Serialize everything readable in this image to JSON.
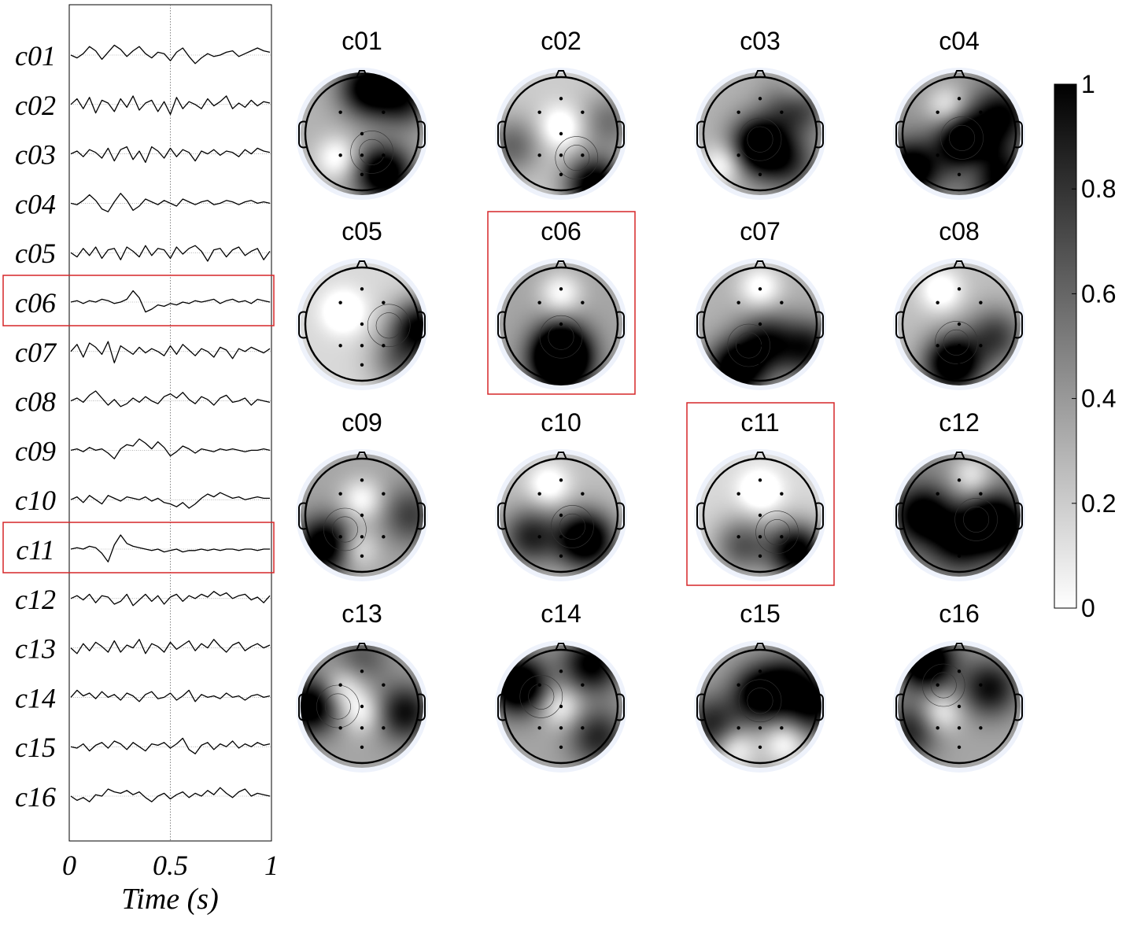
{
  "chart_data": [
    {
      "type": "line",
      "panel": "time-courses",
      "xlabel": "Time (s)",
      "xlim": [
        0,
        1
      ],
      "xticks": [
        "0",
        "0.5",
        "1"
      ],
      "reference_line_x": 0.5,
      "components": [
        "c01",
        "c02",
        "c03",
        "c04",
        "c05",
        "c06",
        "c07",
        "c08",
        "c09",
        "c10",
        "c11",
        "c12",
        "c13",
        "c14",
        "c15",
        "c16"
      ],
      "highlighted": [
        "c06",
        "c11"
      ],
      "series": [
        {
          "name": "c01",
          "values": [
            0.0,
            -0.2,
            0.1,
            0.6,
            0.3,
            -0.3,
            0.2,
            0.7,
            0.4,
            -0.1,
            0.3,
            0.6,
            0.1,
            -0.2,
            0.2,
            0.1,
            -0.4,
            0.2,
            0.5,
            -0.1,
            -0.6,
            -0.2,
            0.1,
            -0.1,
            0.0,
            0.2,
            0.3,
            -0.1,
            0.1,
            0.3,
            0.5,
            0.3,
            0.2
          ]
        },
        {
          "name": "c02",
          "values": [
            0.0,
            0.4,
            -0.3,
            0.5,
            -0.6,
            0.3,
            0.1,
            -0.5,
            0.4,
            -0.2,
            0.6,
            -0.4,
            0.1,
            0.3,
            -0.5,
            0.2,
            -0.7,
            0.5,
            -0.3,
            0.2,
            0.0,
            -0.3,
            0.4,
            -0.1,
            0.2,
            0.6,
            -0.3,
            0.1,
            -0.2,
            0.3,
            -0.1,
            0.2,
            0.1
          ]
        },
        {
          "name": "c03",
          "values": [
            0.0,
            0.2,
            -0.2,
            0.3,
            0.1,
            -0.3,
            0.4,
            -0.5,
            0.3,
            0.5,
            -0.4,
            0.2,
            -0.6,
            0.5,
            0.2,
            -0.3,
            0.4,
            -0.2,
            0.3,
            0.1,
            -0.5,
            0.2,
            0.0,
            0.3,
            -0.1,
            0.2,
            0.1,
            -0.2,
            0.3,
            0.0,
            0.4,
            0.2,
            0.1
          ]
        },
        {
          "name": "c04",
          "values": [
            0.0,
            -0.1,
            0.2,
            0.6,
            0.2,
            -0.4,
            -0.6,
            0.1,
            0.7,
            0.2,
            -0.5,
            -0.2,
            0.3,
            0.1,
            -0.1,
            0.2,
            0.0,
            -0.2,
            0.3,
            0.1,
            -0.1,
            0.1,
            0.2,
            -0.1,
            0.0,
            0.2,
            0.1,
            -0.1,
            0.1,
            0.2,
            0.0,
            0.1,
            0.0
          ]
        },
        {
          "name": "c05",
          "values": [
            0.0,
            -0.3,
            0.3,
            -0.2,
            0.4,
            -0.4,
            0.2,
            0.3,
            -0.5,
            0.4,
            0.1,
            -0.3,
            0.5,
            -0.2,
            0.3,
            0.2,
            -0.4,
            0.4,
            -0.1,
            0.3,
            0.5,
            0.1,
            -0.6,
            0.2,
            0.3,
            -0.3,
            0.2,
            0.4,
            -0.2,
            0.1,
            0.3,
            -0.5,
            0.1
          ]
        },
        {
          "name": "c06",
          "values": [
            0.0,
            0.1,
            -0.1,
            0.1,
            0.0,
            0.2,
            0.1,
            -0.1,
            0.0,
            0.2,
            0.8,
            0.3,
            -0.7,
            -0.5,
            -0.2,
            -0.3,
            -0.1,
            -0.2,
            0.0,
            -0.1,
            0.1,
            0.0,
            0.1,
            0.2,
            -0.1,
            0.1,
            0.2,
            0.0,
            0.1,
            -0.1,
            0.2,
            0.1,
            0.0
          ]
        },
        {
          "name": "c07",
          "values": [
            0.0,
            0.5,
            -0.4,
            0.6,
            0.3,
            -0.2,
            0.7,
            -0.8,
            0.4,
            0.1,
            -0.2,
            0.3,
            -0.1,
            0.2,
            0.0,
            -0.3,
            0.4,
            -0.2,
            0.5,
            0.1,
            -0.3,
            0.2,
            0.0,
            -0.4,
            0.3,
            0.1,
            -0.5,
            0.2,
            0.0,
            0.3,
            0.1,
            -0.1,
            0.2
          ]
        },
        {
          "name": "c08",
          "values": [
            0.0,
            0.2,
            -0.1,
            0.4,
            0.7,
            0.2,
            -0.3,
            0.1,
            -0.4,
            -0.2,
            0.2,
            -0.1,
            0.3,
            0.0,
            -0.2,
            0.3,
            0.5,
            0.2,
            0.6,
            0.1,
            -0.2,
            0.3,
            0.1,
            -0.3,
            0.2,
            0.4,
            -0.1,
            0.0,
            0.2,
            -0.3,
            0.1,
            0.0,
            -0.1
          ]
        },
        {
          "name": "c09",
          "values": [
            0.0,
            0.1,
            -0.1,
            0.2,
            0.0,
            0.1,
            -0.2,
            -0.6,
            0.1,
            0.4,
            0.3,
            0.8,
            0.5,
            0.1,
            0.6,
            0.2,
            -0.4,
            -0.1,
            0.3,
            0.1,
            -0.2,
            0.1,
            0.0,
            -0.1,
            0.1,
            0.0,
            0.1,
            0.0,
            -0.1,
            0.0,
            0.0,
            0.1,
            0.0
          ]
        },
        {
          "name": "c10",
          "values": [
            0.0,
            0.2,
            -0.2,
            0.3,
            0.0,
            -0.3,
            0.3,
            0.1,
            -0.1,
            0.2,
            0.1,
            0.0,
            0.2,
            -0.1,
            0.1,
            -0.2,
            -0.3,
            -0.5,
            -0.2,
            -0.6,
            -0.3,
            0.1,
            0.4,
            0.2,
            0.5,
            0.3,
            0.1,
            0.2,
            0.0,
            0.1,
            0.2,
            0.1,
            0.1
          ]
        },
        {
          "name": "c11",
          "values": [
            0.0,
            0.1,
            0.0,
            0.2,
            0.1,
            -0.3,
            -0.9,
            0.3,
            1.0,
            0.4,
            0.2,
            0.1,
            0.0,
            -0.1,
            0.0,
            -0.2,
            -0.1,
            0.0,
            -0.2,
            -0.1,
            -0.1,
            0.0,
            -0.1,
            0.0,
            -0.1,
            0.0,
            0.0,
            -0.1,
            0.0,
            0.0,
            -0.1,
            0.0,
            0.0
          ]
        },
        {
          "name": "c12",
          "values": [
            0.0,
            0.2,
            -0.1,
            0.3,
            -0.3,
            0.2,
            0.1,
            -0.4,
            -0.2,
            0.3,
            -0.5,
            -0.1,
            0.3,
            -0.2,
            0.2,
            -0.4,
            0.1,
            0.3,
            -0.2,
            0.2,
            0.0,
            0.3,
            0.1,
            0.5,
            0.2,
            0.4,
            0.0,
            0.2,
            0.3,
            -0.1,
            0.1,
            -0.3,
            0.2
          ]
        },
        {
          "name": "c13",
          "values": [
            0.0,
            -0.4,
            0.3,
            -0.2,
            0.4,
            0.1,
            -0.3,
            0.5,
            -0.3,
            0.2,
            0.0,
            0.6,
            -0.4,
            0.3,
            0.1,
            -0.3,
            0.4,
            -0.1,
            0.2,
            0.5,
            -0.2,
            0.3,
            0.0,
            0.6,
            0.1,
            -0.3,
            0.2,
            0.4,
            -0.2,
            0.1,
            0.3,
            0.0,
            0.2
          ]
        },
        {
          "name": "c14",
          "values": [
            0.0,
            0.5,
            0.1,
            0.3,
            -0.1,
            0.4,
            0.0,
            0.2,
            -0.2,
            0.3,
            0.1,
            -0.3,
            0.2,
            0.4,
            -0.1,
            0.0,
            0.3,
            -0.2,
            0.1,
            0.5,
            -0.3,
            0.2,
            0.0,
            0.1,
            -0.1,
            0.3,
            0.0,
            0.1,
            -0.2,
            0.1,
            0.2,
            0.0,
            0.1
          ]
        },
        {
          "name": "c15",
          "values": [
            0.0,
            -0.1,
            0.2,
            -0.3,
            0.1,
            0.3,
            -0.1,
            0.4,
            0.2,
            -0.2,
            0.3,
            0.0,
            -0.3,
            0.2,
            0.1,
            0.3,
            -0.1,
            0.2,
            0.6,
            -0.2,
            -0.5,
            0.1,
            0.3,
            -0.2,
            0.2,
            0.0,
            0.4,
            -0.1,
            0.2,
            0.0,
            0.3,
            0.1,
            0.2
          ]
        },
        {
          "name": "c16",
          "values": [
            0.0,
            -0.3,
            -0.1,
            -0.4,
            0.1,
            0.0,
            0.5,
            0.3,
            0.2,
            0.4,
            0.1,
            0.3,
            -0.1,
            -0.4,
            0.0,
            0.2,
            -0.2,
            0.1,
            0.3,
            -0.1,
            0.2,
            0.0,
            0.4,
            0.1,
            0.6,
            0.2,
            -0.1,
            0.3,
            0.5,
            0.0,
            0.2,
            0.1,
            0.0
          ]
        }
      ]
    },
    {
      "type": "heatmap",
      "panel": "topographic-maps",
      "colorbar": {
        "min": 0,
        "max": 1,
        "ticks": [
          "0",
          "0.2",
          "0.4",
          "0.6",
          "0.8",
          "1"
        ],
        "colormap": "grayscale (0 white, 1 black)"
      },
      "highlighted": [
        "c06",
        "c11"
      ],
      "highlight_color": "#d62728",
      "maps": [
        {
          "name": "c01",
          "blobs": [
            [
              0.35,
              0.65,
              0.9
            ],
            [
              0.1,
              -0.75,
              0.8
            ],
            [
              0.7,
              -0.6,
              0.6
            ]
          ],
          "light": [
            [
              -0.4,
              0.4
            ]
          ],
          "base": 0.3
        },
        {
          "name": "c02",
          "blobs": [
            [
              0.55,
              0.85,
              0.95
            ],
            [
              -0.8,
              0.2,
              0.4
            ],
            [
              0.8,
              -0.2,
              0.35
            ]
          ],
          "light": [
            [
              0.0,
              -0.1
            ]
          ],
          "base": 0.2
        },
        {
          "name": "c03",
          "blobs": [
            [
              0.0,
              0.2,
              1.0
            ],
            [
              0.6,
              -0.5,
              0.6
            ],
            [
              0.5,
              0.5,
              0.4
            ]
          ],
          "light": [
            [
              -0.6,
              0.5
            ],
            [
              0.6,
              -0.7
            ]
          ],
          "base": 0.3
        },
        {
          "name": "c04",
          "blobs": [
            [
              0.1,
              0.15,
              0.9
            ],
            [
              -0.8,
              0.6,
              0.8
            ],
            [
              0.6,
              0.7,
              0.7
            ],
            [
              0.7,
              -0.3,
              0.6
            ]
          ],
          "light": [
            [
              -0.2,
              -0.45
            ],
            [
              0.3,
              0.55
            ]
          ],
          "base": 0.4
        },
        {
          "name": "c05",
          "blobs": [
            [
              0.95,
              0.05,
              0.85
            ],
            [
              0.6,
              0.6,
              0.4
            ]
          ],
          "light": [
            [
              -0.3,
              -0.2
            ]
          ],
          "base": 0.15
        },
        {
          "name": "c06",
          "blobs": [
            [
              0.0,
              0.45,
              1.0
            ],
            [
              0.0,
              0.7,
              0.6
            ]
          ],
          "light": [
            [
              0.0,
              -0.5
            ]
          ],
          "base": 0.35
        },
        {
          "name": "c07",
          "blobs": [
            [
              -0.4,
              0.75,
              0.9
            ],
            [
              0.1,
              0.3,
              0.6
            ],
            [
              0.8,
              0.4,
              0.6
            ]
          ],
          "light": [
            [
              0.0,
              -0.6
            ]
          ],
          "base": 0.3
        },
        {
          "name": "c08",
          "blobs": [
            [
              -0.1,
              0.65,
              1.0
            ],
            [
              0.6,
              0.2,
              0.5
            ]
          ],
          "light": [
            [
              -0.3,
              -0.55
            ]
          ],
          "base": 0.25
        },
        {
          "name": "c09",
          "blobs": [
            [
              -0.6,
              0.5,
              0.85
            ],
            [
              0.8,
              0.0,
              0.4
            ]
          ],
          "light": [
            [
              0.0,
              -0.25
            ],
            [
              -0.1,
              0.55
            ]
          ],
          "base": 0.35
        },
        {
          "name": "c10",
          "blobs": [
            [
              0.4,
              0.4,
              1.0
            ],
            [
              -0.5,
              0.35,
              0.6
            ]
          ],
          "light": [
            [
              -0.2,
              -0.5
            ]
          ],
          "base": 0.25
        },
        {
          "name": "c11",
          "blobs": [
            [
              0.6,
              0.6,
              0.95
            ],
            [
              -0.3,
              0.5,
              0.5
            ]
          ],
          "light": [
            [
              0.0,
              -0.4
            ]
          ],
          "base": 0.15
        },
        {
          "name": "c12",
          "blobs": [
            [
              0.6,
              0.15,
              0.9
            ],
            [
              -0.6,
              0.0,
              0.7
            ],
            [
              0.0,
              0.4,
              0.6
            ]
          ],
          "light": [
            [
              0.2,
              -0.65
            ]
          ],
          "base": 0.45
        },
        {
          "name": "c13",
          "blobs": [
            [
              -0.85,
              0.0,
              0.8
            ],
            [
              0.7,
              0.1,
              0.6
            ],
            [
              0.0,
              -0.8,
              0.3
            ]
          ],
          "light": [
            [
              0.0,
              0.1
            ],
            [
              -0.3,
              -0.3
            ]
          ],
          "base": 0.35
        },
        {
          "name": "c14",
          "blobs": [
            [
              -0.7,
              -0.35,
              0.95
            ],
            [
              0.5,
              -0.7,
              0.7
            ],
            [
              0.6,
              0.5,
              0.5
            ]
          ],
          "light": [
            [
              0.0,
              0.0
            ]
          ],
          "base": 0.35
        },
        {
          "name": "c15",
          "blobs": [
            [
              0.0,
              -0.2,
              0.75
            ],
            [
              0.5,
              -0.4,
              0.5
            ],
            [
              0.9,
              0.0,
              0.6
            ],
            [
              -0.8,
              0.3,
              0.5
            ]
          ],
          "light": [
            [
              -0.4,
              0.7
            ],
            [
              0.4,
              0.6
            ]
          ],
          "base": 0.35
        },
        {
          "name": "c16",
          "blobs": [
            [
              -0.55,
              -0.75,
              0.95
            ],
            [
              0.5,
              -0.3,
              0.6
            ],
            [
              -0.8,
              0.4,
              0.5
            ]
          ],
          "light": [
            [
              -0.3,
              0.1
            ]
          ],
          "base": 0.35
        }
      ],
      "electrodes": [
        [
          0.0,
          -0.62
        ],
        [
          -0.38,
          -0.38
        ],
        [
          0.38,
          -0.38
        ],
        [
          0.0,
          0.0
        ],
        [
          -0.38,
          0.38
        ],
        [
          0.0,
          0.38
        ],
        [
          0.38,
          0.38
        ],
        [
          0.0,
          0.72
        ]
      ]
    }
  ]
}
